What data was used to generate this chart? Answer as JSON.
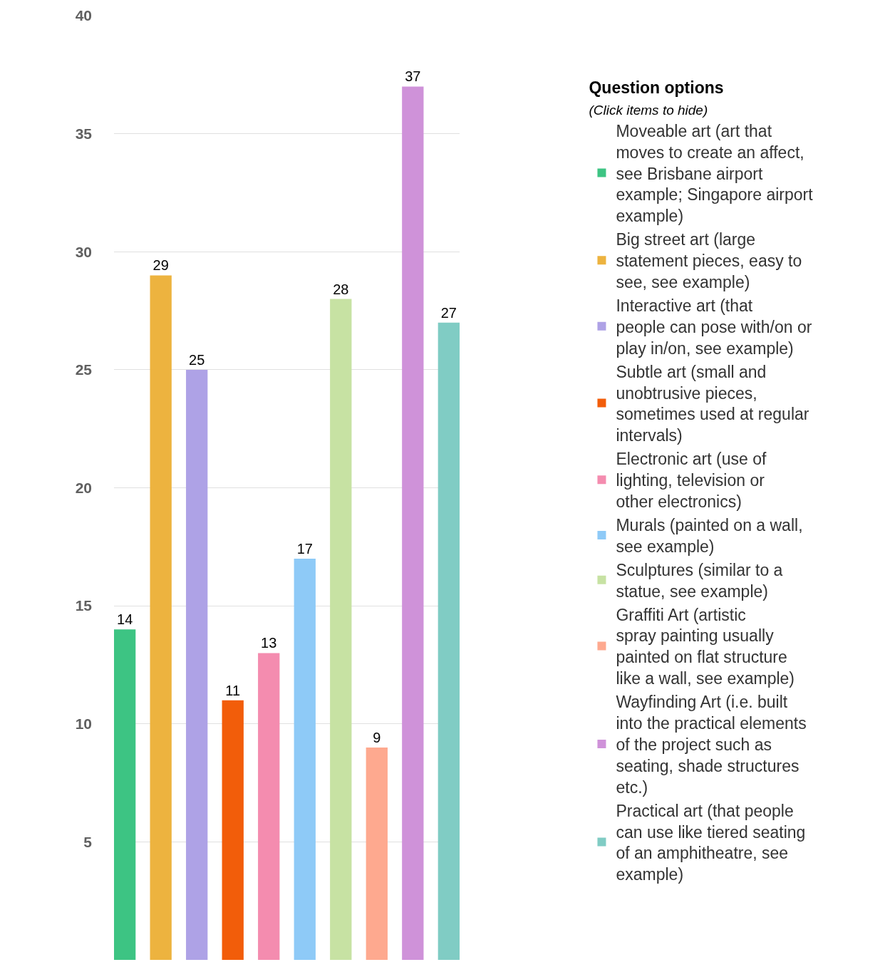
{
  "chart_data": {
    "type": "bar",
    "legend_title": "Question options",
    "subtitle": "(Click items to hide)",
    "categories": [
      null,
      null,
      null,
      null,
      null,
      null,
      null,
      null,
      null,
      null
    ],
    "series": [
      {
        "name": "Moveable art (art that moves to create an affect, see Brisbane airport example; Singapore airport example)",
        "color": "#3dc483",
        "values": [
          14,
          null,
          null,
          null,
          null,
          null,
          null,
          null,
          null,
          null
        ]
      },
      {
        "name": "Big street art (large statement pieces, easy to see, see example)",
        "color": "#edb33f",
        "values": [
          null,
          29,
          null,
          null,
          null,
          null,
          null,
          null,
          null,
          null
        ]
      },
      {
        "name": "Interactive art (that people can pose with/on or play in/on, see example)",
        "color": "#aea2e6",
        "values": [
          null,
          null,
          25,
          null,
          null,
          null,
          null,
          null,
          null,
          null
        ]
      },
      {
        "name": "Subtle art (small and unobtrusive pieces, sometimes used at regular intervals)",
        "color": "#f25d0a",
        "values": [
          null,
          null,
          null,
          11,
          null,
          null,
          null,
          null,
          null,
          null
        ]
      },
      {
        "name": "Electronic art (use of lighting, television or other electronics)",
        "color": "#f48caf",
        "values": [
          null,
          null,
          null,
          null,
          13,
          null,
          null,
          null,
          null,
          null
        ]
      },
      {
        "name": "Murals (painted on a wall, see example)",
        "color": "#8ecaf7",
        "values": [
          null,
          null,
          null,
          null,
          null,
          17,
          null,
          null,
          null,
          null
        ]
      },
      {
        "name": "Sculptures (similar to a statue, see example)",
        "color": "#c7e2a3",
        "values": [
          null,
          null,
          null,
          null,
          null,
          null,
          28,
          null,
          null,
          null
        ]
      },
      {
        "name": "Graffiti Art (artistic spray painting usually painted on flat structure like a wall, see example)",
        "color": "#fea98f",
        "values": [
          null,
          null,
          null,
          null,
          null,
          null,
          null,
          9,
          null,
          null
        ]
      },
      {
        "name": "Wayfinding Art (i.e. built into the practical elements of the project such as seating, shade structures etc.)",
        "color": "#cf92d9",
        "values": [
          null,
          null,
          null,
          null,
          null,
          null,
          null,
          null,
          37,
          null
        ]
      },
      {
        "name": "Practical art (that people can use like tiered seating of an amphitheatre, see example)",
        "color": "#80ccc4",
        "values": [
          null,
          null,
          null,
          null,
          null,
          null,
          null,
          null,
          null,
          27
        ]
      }
    ],
    "ylim": [
      0,
      40
    ],
    "yticks": [
      5,
      10,
      15,
      20,
      25,
      30,
      35,
      40
    ],
    "grid": "y",
    "data_labels": true,
    "legend": "right",
    "tick_labels": "y"
  }
}
